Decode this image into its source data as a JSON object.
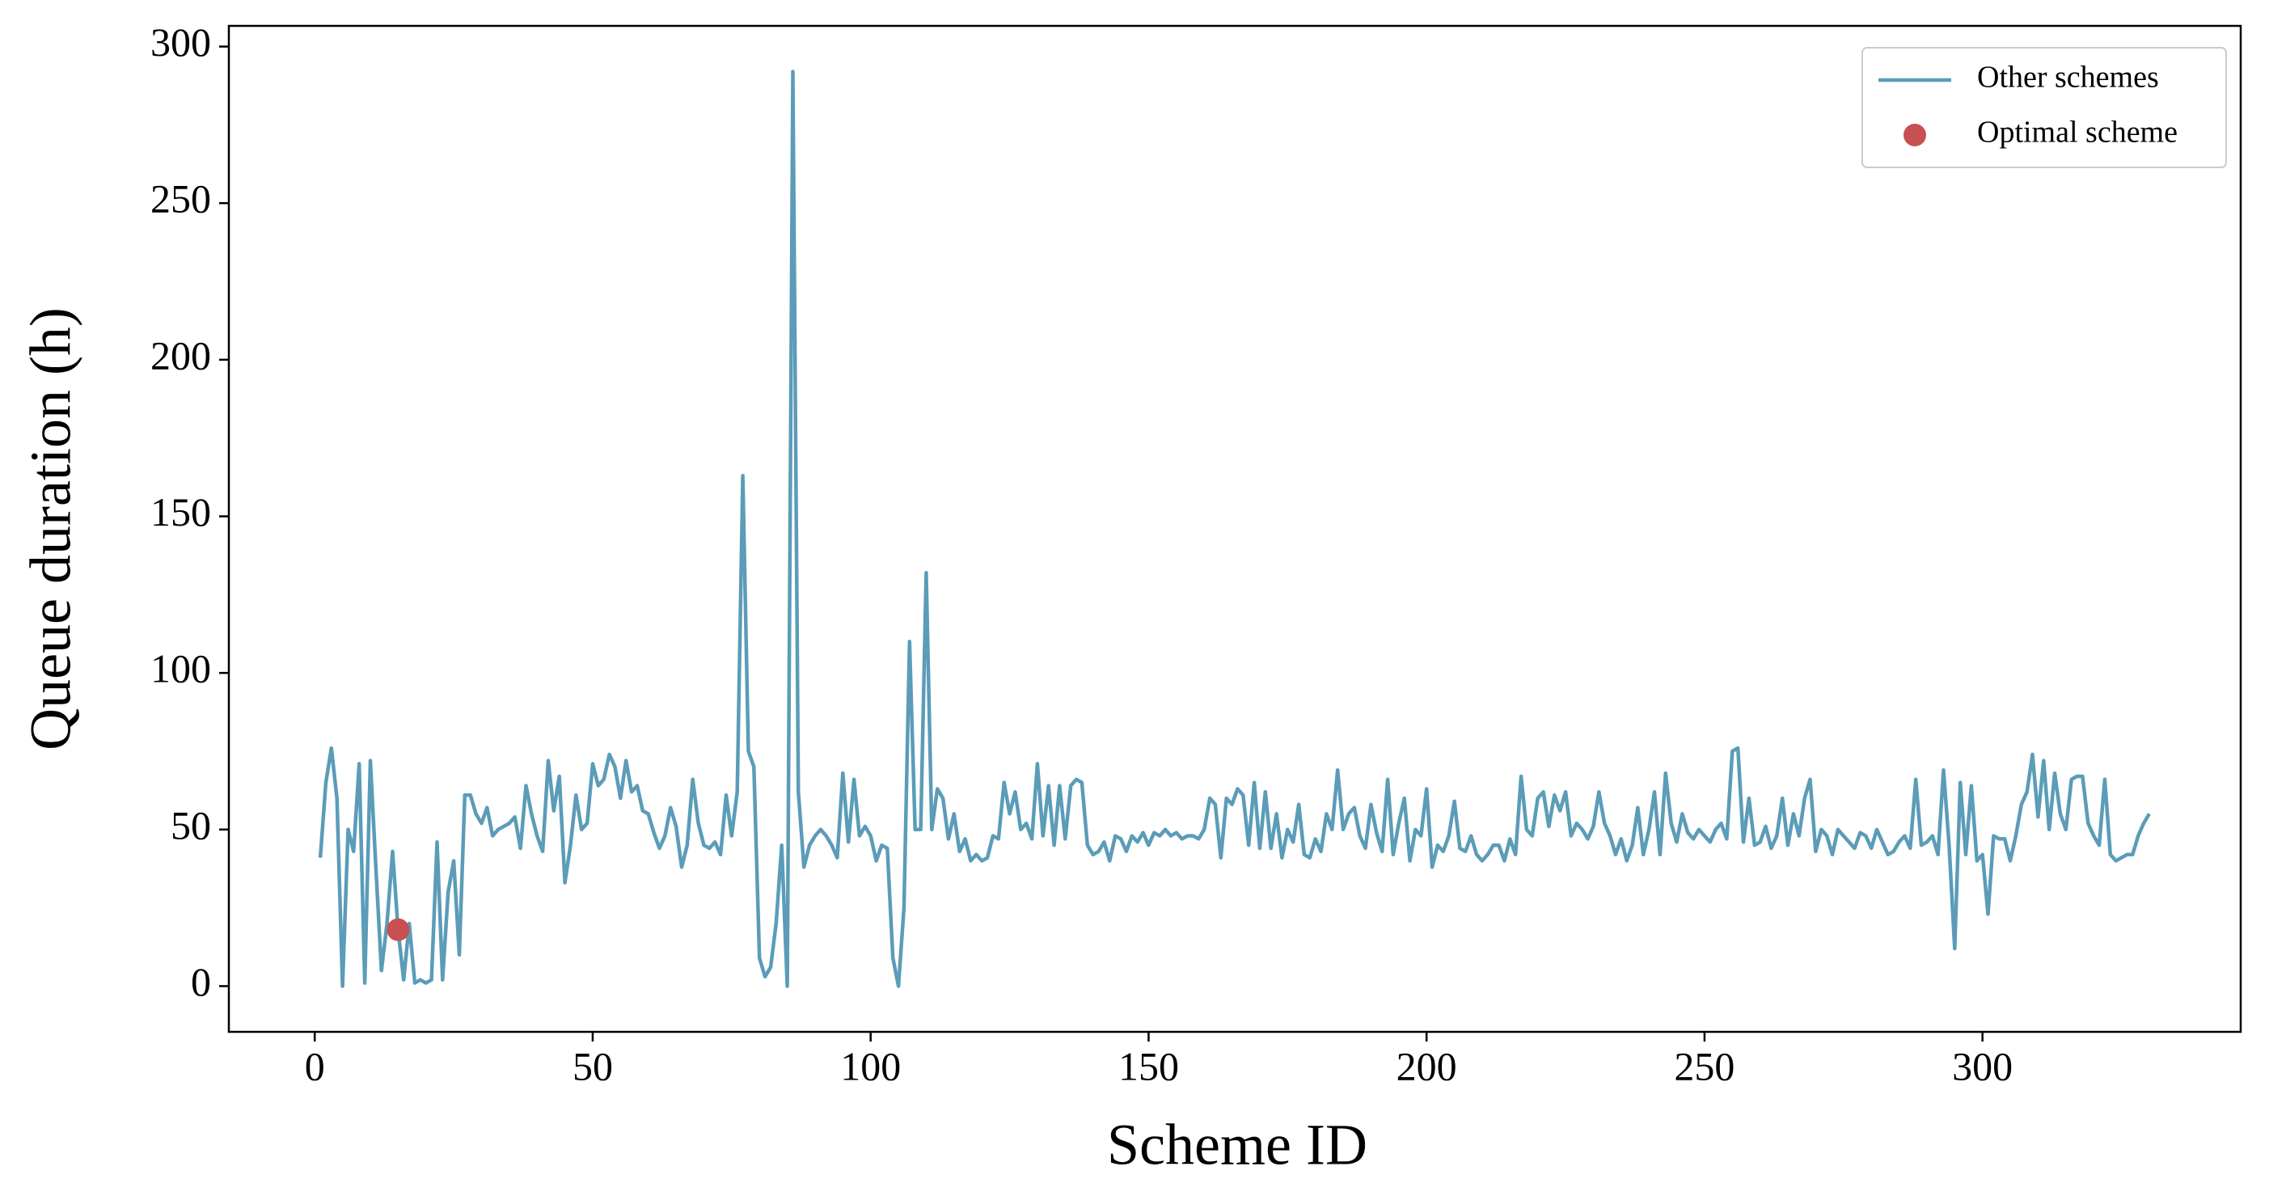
{
  "chart_data": {
    "type": "line",
    "xlabel": "Scheme ID",
    "ylabel": "Queue duration (h)",
    "xlim": [
      -15.45,
      346.45
    ],
    "ylim": [
      -14.6,
      306.6
    ],
    "xticks": [
      0,
      50,
      100,
      150,
      200,
      250,
      300
    ],
    "yticks": [
      0,
      50,
      100,
      150,
      200,
      250,
      300
    ],
    "legend": "upper right",
    "series": [
      {
        "name": "Other schemes",
        "type": "line",
        "color": "#5b9cb8",
        "x": [
          1,
          2,
          3,
          4,
          5,
          6,
          7,
          8,
          9,
          10,
          11,
          12,
          13,
          14,
          15,
          16,
          17,
          18,
          19,
          20,
          21,
          22,
          23,
          24,
          25,
          26,
          27,
          28,
          29,
          30,
          31,
          32,
          33,
          34,
          35,
          36,
          37,
          38,
          39,
          40,
          41,
          42,
          43,
          44,
          45,
          46,
          47,
          48,
          49,
          50,
          51,
          52,
          53,
          54,
          55,
          56,
          57,
          58,
          59,
          60,
          61,
          62,
          63,
          64,
          65,
          66,
          67,
          68,
          69,
          70,
          71,
          72,
          73,
          74,
          75,
          76,
          77,
          78,
          79,
          80,
          81,
          82,
          83,
          84,
          85,
          86,
          87,
          88,
          89,
          90,
          91,
          92,
          93,
          94,
          95,
          96,
          97,
          98,
          99,
          100,
          101,
          102,
          103,
          104,
          105,
          106,
          107,
          108,
          109,
          110,
          111,
          112,
          113,
          114,
          115,
          116,
          117,
          118,
          119,
          120,
          121,
          122,
          123,
          124,
          125,
          126,
          127,
          128,
          129,
          130,
          131,
          132,
          133,
          134,
          135,
          136,
          137,
          138,
          139,
          140,
          141,
          142,
          143,
          144,
          145,
          146,
          147,
          148,
          149,
          150,
          151,
          152,
          153,
          154,
          155,
          156,
          157,
          158,
          159,
          160,
          161,
          162,
          163,
          164,
          165,
          166,
          167,
          168,
          169,
          170,
          171,
          172,
          173,
          174,
          175,
          176,
          177,
          178,
          179,
          180,
          181,
          182,
          183,
          184,
          185,
          186,
          187,
          188,
          189,
          190,
          191,
          192,
          193,
          194,
          195,
          196,
          197,
          198,
          199,
          200,
          201,
          202,
          203,
          204,
          205,
          206,
          207,
          208,
          209,
          210,
          211,
          212,
          213,
          214,
          215,
          216,
          217,
          218,
          219,
          220,
          221,
          222,
          223,
          224,
          225,
          226,
          227,
          228,
          229,
          230,
          231,
          232,
          233,
          234,
          235,
          236,
          237,
          238,
          239,
          240,
          241,
          242,
          243,
          244,
          245,
          246,
          247,
          248,
          249,
          250,
          251,
          252,
          253,
          254,
          255,
          256,
          257,
          258,
          259,
          260,
          261,
          262,
          263,
          264,
          265,
          266,
          267,
          268,
          269,
          270,
          271,
          272,
          273,
          274,
          275,
          276,
          277,
          278,
          279,
          280,
          281,
          282,
          283,
          284,
          285,
          286,
          287,
          288,
          289,
          290,
          291,
          292,
          293,
          294,
          295,
          296,
          297,
          298,
          299,
          300,
          301,
          302,
          303,
          304,
          305,
          306,
          307,
          308,
          309,
          310,
          311,
          312,
          313,
          314,
          315,
          316,
          317,
          318,
          319,
          320,
          321,
          322,
          323,
          324,
          325,
          326,
          327,
          328,
          329,
          330
        ],
        "values": [
          41,
          65,
          76,
          60,
          0,
          50,
          43,
          71,
          1,
          72,
          38,
          5,
          20,
          43,
          18,
          2,
          20,
          1,
          2,
          1,
          2,
          46,
          2,
          30,
          40,
          10,
          61,
          61,
          55,
          52,
          57,
          48,
          50,
          51,
          52,
          54,
          44,
          64,
          55,
          48,
          43,
          72,
          56,
          67,
          33,
          45,
          61,
          50,
          52,
          71,
          64,
          66,
          74,
          70,
          60,
          72,
          62,
          64,
          56,
          55,
          49,
          44,
          48,
          57,
          51,
          38,
          45,
          66,
          52,
          45,
          44,
          46,
          42,
          61,
          48,
          62,
          163,
          75,
          70,
          9,
          3,
          6,
          20,
          45,
          0,
          292,
          62,
          38,
          45,
          48,
          50,
          48,
          45,
          41,
          68,
          46,
          66,
          48,
          51,
          48,
          40,
          45,
          44,
          9,
          0,
          25,
          110,
          50,
          50,
          132,
          50,
          63,
          60,
          47,
          55,
          43,
          47,
          40,
          42,
          40,
          41,
          48,
          47,
          65,
          55,
          62,
          50,
          52,
          47,
          71,
          48,
          64,
          45,
          64,
          47,
          64,
          66,
          65,
          45,
          42,
          43,
          46,
          40,
          48,
          47,
          43,
          48,
          46,
          49,
          45,
          49,
          48,
          50,
          48,
          49,
          47,
          48,
          48,
          47,
          50,
          60,
          58,
          41,
          60,
          58,
          63,
          61,
          45,
          65,
          44,
          62,
          44,
          55,
          41,
          50,
          46,
          58,
          42,
          41,
          47,
          43,
          55,
          50,
          69,
          50,
          55,
          57,
          48,
          44,
          58,
          49,
          43,
          66,
          42,
          52,
          60,
          40,
          50,
          48,
          63,
          38,
          45,
          43,
          48,
          59,
          44,
          43,
          48,
          42,
          40,
          42,
          45,
          45,
          40,
          47,
          42,
          67,
          50,
          48,
          60,
          62,
          51,
          61,
          56,
          62,
          48,
          52,
          50,
          47,
          51,
          62,
          52,
          48,
          42,
          47,
          40,
          45,
          57,
          42,
          50,
          62,
          42,
          68,
          52,
          46,
          55,
          49,
          47,
          50,
          48,
          46,
          50,
          52,
          47,
          75,
          76,
          46,
          60,
          45,
          46,
          51,
          44,
          48,
          60,
          45,
          55,
          48,
          60,
          66,
          43,
          50,
          48,
          42,
          50,
          48,
          46,
          44,
          49,
          48,
          44,
          50,
          46,
          42,
          43,
          46,
          48,
          44,
          66,
          45,
          46,
          48,
          42,
          69,
          45,
          12,
          65,
          42,
          64,
          40,
          42,
          23,
          48,
          47,
          47,
          40,
          48,
          58,
          62,
          74,
          54,
          72,
          50,
          68,
          55,
          50,
          66,
          67,
          67,
          52,
          48,
          45,
          66,
          42,
          40,
          41,
          42,
          42,
          48,
          52,
          55
        ]
      },
      {
        "name": "Optimal scheme",
        "type": "scatter",
        "color": "#c85050",
        "x": [
          15
        ],
        "values": [
          18
        ]
      }
    ]
  }
}
